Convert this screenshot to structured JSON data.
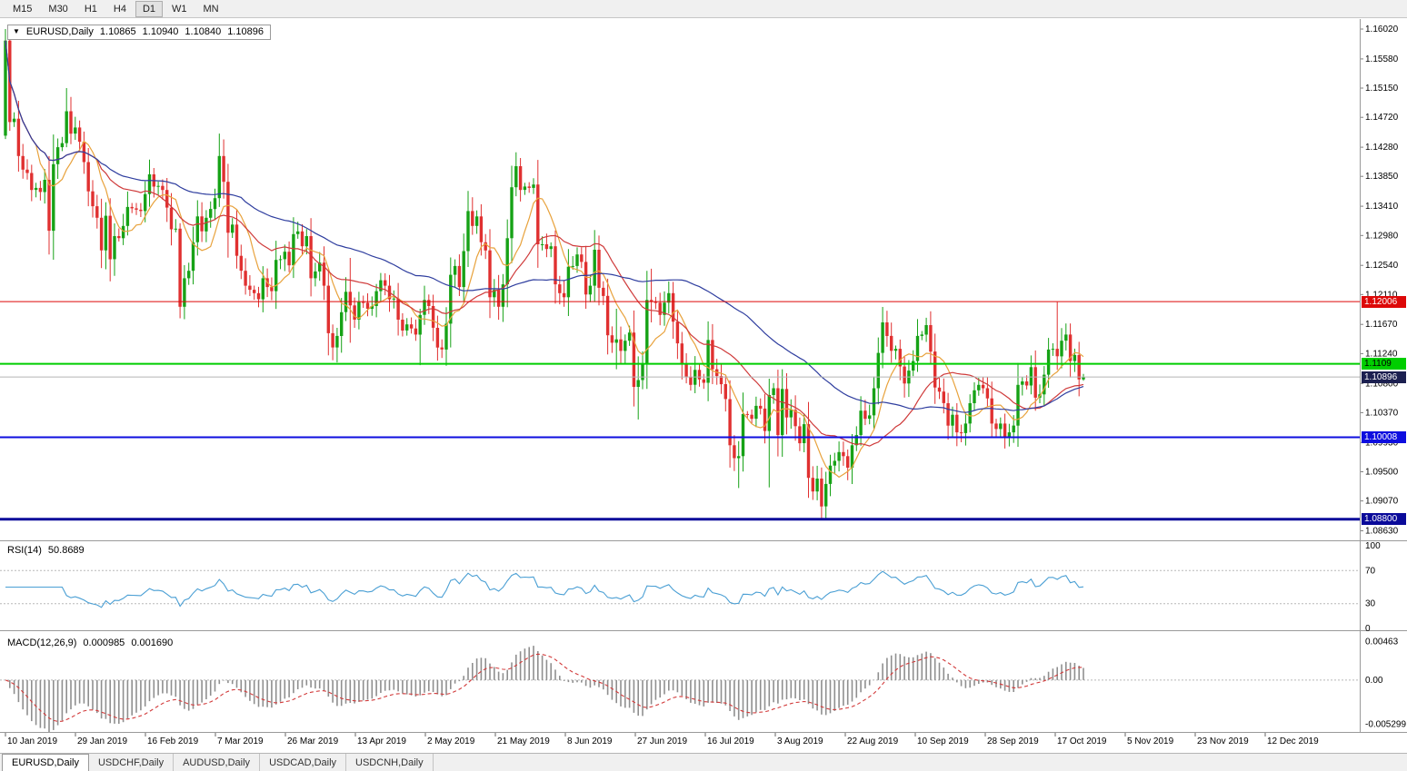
{
  "toolbar": {
    "timeframes": [
      "M15",
      "M30",
      "H1",
      "H4",
      "D1",
      "W1",
      "MN"
    ],
    "active": "D1"
  },
  "chart_title": {
    "dropdown_icon": "▼",
    "symbol": "EURUSD,Daily",
    "open": "1.10865",
    "high": "1.10940",
    "low": "1.10840",
    "close": "1.10896"
  },
  "chart_data": {
    "type": "candlestick",
    "symbol": "EURUSD",
    "timeframe": "Daily",
    "y_min": 1.0853,
    "y_max": 1.161,
    "price_axis_labels": [
      "1.16020",
      "1.15580",
      "1.15150",
      "1.14720",
      "1.14280",
      "1.13850",
      "1.13410",
      "1.12980",
      "1.12540",
      "1.12110",
      "1.11670",
      "1.11240",
      "1.10800",
      "1.10370",
      "1.09930",
      "1.09500",
      "1.09070",
      "1.08630"
    ],
    "date_labels": [
      "10 Jan 2019",
      "29 Jan 2019",
      "16 Feb 2019",
      "7 Mar 2019",
      "26 Mar 2019",
      "13 Apr 2019",
      "2 May 2019",
      "21 May 2019",
      "8 Jun 2019",
      "27 Jun 2019",
      "16 Jul 2019",
      "3 Aug 2019",
      "22 Aug 2019",
      "10 Sep 2019",
      "28 Sep 2019",
      "17 Oct 2019",
      "5 Nov 2019",
      "23 Nov 2019",
      "12 Dec 2019"
    ],
    "first_open": 1.1445,
    "closes": [
      1.1585,
      1.1465,
      1.147,
      1.1415,
      1.1395,
      1.139,
      1.1365,
      1.1368,
      1.1362,
      1.138,
      1.1305,
      1.1403,
      1.1428,
      1.1434,
      1.1481,
      1.1448,
      1.1457,
      1.1436,
      1.1406,
      1.1363,
      1.1341,
      1.1324,
      1.1276,
      1.1327,
      1.1263,
      1.1297,
      1.1294,
      1.1312,
      1.134,
      1.1338,
      1.1336,
      1.1334,
      1.1359,
      1.1388,
      1.137,
      1.1371,
      1.1365,
      1.1339,
      1.1307,
      1.1308,
      1.1193,
      1.1235,
      1.1246,
      1.1288,
      1.1326,
      1.1304,
      1.1324,
      1.1337,
      1.1353,
      1.1415,
      1.1377,
      1.1302,
      1.1314,
      1.1268,
      1.1246,
      1.1224,
      1.1218,
      1.1213,
      1.1204,
      1.1235,
      1.1222,
      1.1216,
      1.1262,
      1.1263,
      1.1274,
      1.1254,
      1.13,
      1.1304,
      1.1282,
      1.1297,
      1.1235,
      1.1245,
      1.1258,
      1.1224,
      1.1154,
      1.1133,
      1.115,
      1.1185,
      1.1215,
      1.1195,
      1.1174,
      1.12,
      1.1199,
      1.119,
      1.1194,
      1.1216,
      1.1232,
      1.1224,
      1.1204,
      1.1205,
      1.1174,
      1.1158,
      1.1167,
      1.1161,
      1.1152,
      1.1181,
      1.1203,
      1.1194,
      1.1162,
      1.1133,
      1.113,
      1.1168,
      1.124,
      1.1253,
      1.1222,
      1.1275,
      1.1334,
      1.1312,
      1.1326,
      1.1288,
      1.1276,
      1.1207,
      1.1218,
      1.1193,
      1.1226,
      1.1294,
      1.1369,
      1.14,
      1.1365,
      1.137,
      1.1368,
      1.1373,
      1.1285,
      1.1285,
      1.1278,
      1.1282,
      1.1226,
      1.1213,
      1.1207,
      1.1252,
      1.1253,
      1.127,
      1.1259,
      1.1211,
      1.1224,
      1.1277,
      1.1221,
      1.1209,
      1.1151,
      1.114,
      1.1145,
      1.1128,
      1.1143,
      1.1155,
      1.1075,
      1.1085,
      1.1108,
      1.1203,
      1.12,
      1.1199,
      1.1181,
      1.1199,
      1.1213,
      1.1171,
      1.1139,
      1.1109,
      1.109,
      1.1078,
      1.11,
      1.1086,
      1.1081,
      1.1144,
      1.1101,
      1.1091,
      1.1079,
      1.1057,
      1.0989,
      1.097,
      1.0973,
      1.1035,
      1.1034,
      1.1028,
      1.1047,
      1.1043,
      1.101,
      1.1063,
      1.1073,
      1.1004,
      1.1072,
      1.103,
      1.1041,
      1.1017,
      1.0992,
      1.102,
      1.0941,
      1.0921,
      1.094,
      1.0899,
      1.0932,
      1.0959,
      1.0966,
      1.0979,
      1.0973,
      1.0956,
      1.0989,
      1.1004,
      1.104,
      1.1028,
      1.1033,
      1.1073,
      1.1125,
      1.117,
      1.115,
      1.1128,
      1.1131,
      1.1105,
      1.108,
      1.1099,
      1.1113,
      1.115,
      1.1152,
      1.1166,
      1.1127,
      1.1074,
      1.1068,
      1.1051,
      1.1018,
      1.1034,
      1.1008,
      1.1007,
      1.1021,
      1.1051,
      1.107,
      1.1078,
      1.1073,
      1.1058,
      1.1021,
      1.1013,
      1.1021,
      1.1001,
      1.1008,
      1.1018,
      1.1078,
      1.1083,
      1.1077,
      1.1104,
      1.1059,
      1.1064,
      1.1093,
      1.113,
      1.1131,
      1.112,
      1.1143,
      1.1152,
      1.1113,
      1.1122,
      1.1086,
      1.10896
    ],
    "wick_overrides": {
      "0": [
        1.1602,
        1.144
      ],
      "1": [
        1.1592,
        1.1452
      ],
      "14": [
        1.1515,
        1.1428
      ],
      "40": [
        1.1316,
        1.1176
      ],
      "49": [
        1.1448,
        1.134
      ],
      "76": [
        1.1162,
        1.1111
      ],
      "79": [
        1.1265,
        1.114
      ],
      "95": [
        1.119,
        1.1107
      ],
      "118": [
        1.1412,
        1.1348
      ],
      "128": [
        1.1232,
        1.1193
      ],
      "140": [
        1.119,
        1.1101
      ],
      "145": [
        1.112,
        1.1027
      ],
      "148": [
        1.1249,
        1.117
      ],
      "168": [
        1.0995,
        1.0926
      ],
      "175": [
        1.1087,
        1.0927
      ],
      "188": [
        1.095,
        1.0879
      ],
      "241": [
        1.12,
        1.11
      ],
      "247": [
        1.1094,
        1.1084
      ]
    },
    "candle_colors": {
      "bull": "#16a216",
      "bear": "#e03030"
    },
    "moving_averages": [
      {
        "period": 8,
        "color": "#e8a23c"
      },
      {
        "period": 22,
        "color": "#cf3a3a"
      },
      {
        "period": 55,
        "color": "#2f3e9f"
      }
    ],
    "horizontal_levels": [
      {
        "price": 1.12006,
        "label": "1.12006",
        "color": "#dd0808",
        "width": 1,
        "tag_bg": "#dd0808",
        "tag_color": "#ffffff"
      },
      {
        "price": 1.1109,
        "label": "1.1109",
        "color": "#00ce00",
        "width": 2,
        "tag_bg": "#00ce00",
        "tag_color": "#000000"
      },
      {
        "price": 1.10896,
        "label": "1.10896",
        "color": "#b4b4b4",
        "width": 1,
        "tag_bg": "#1c2050",
        "tag_color": "#ffffff"
      },
      {
        "price": 1.10008,
        "label": "1.10008",
        "color": "#0e0edf",
        "width": 2,
        "tag_bg": "#0e0edf",
        "tag_color": "#ffffff"
      },
      {
        "price": 1.088,
        "label": "1.08800",
        "color": "#0a0a9a",
        "width": 3,
        "tag_bg": "#0a0a9a",
        "tag_color": "#ffffff"
      }
    ],
    "rsi": {
      "label": "RSI(14)",
      "period": 14,
      "current_display": "50.8689",
      "scale_labels": [
        "100",
        "70",
        "30",
        "0"
      ],
      "guide_levels": [
        70,
        30
      ],
      "line_color": "#4a9fd4",
      "y_min": 0,
      "y_max": 100
    },
    "macd": {
      "label": "MACD(12,26,9)",
      "fast": 12,
      "slow": 26,
      "signal": 9,
      "current_main": "0.000985",
      "current_signal": "0.001690",
      "scale_labels": [
        "0.00463",
        "0.00",
        "-0.005299"
      ],
      "histogram_color": "#8f8f8f",
      "signal_color": "#d23a3a",
      "y_min": -0.0062,
      "y_max": 0.0052
    }
  },
  "tabs": {
    "items": [
      "EURUSD,Daily",
      "USDCHF,Daily",
      "AUDUSD,Daily",
      "USDCAD,Daily",
      "USDCNH,Daily"
    ],
    "active_index": 0
  }
}
